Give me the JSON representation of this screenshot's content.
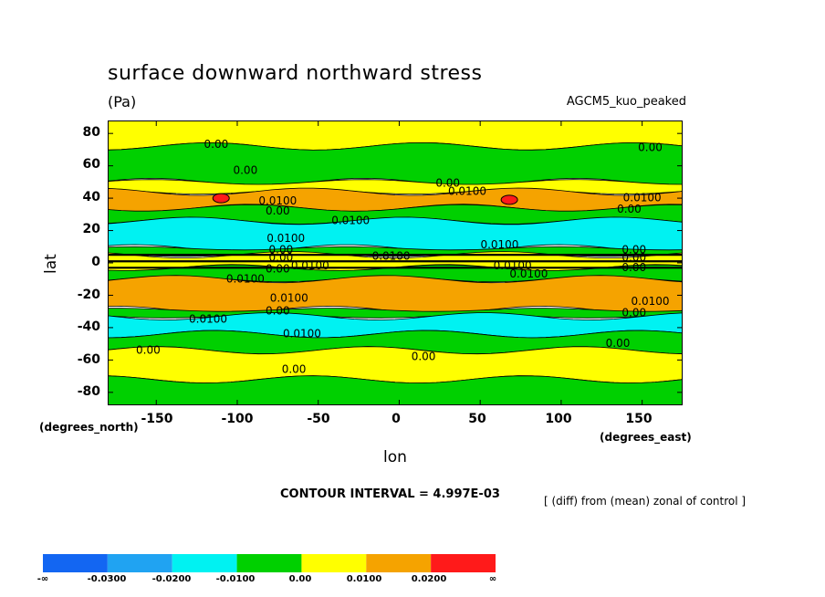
{
  "chart_data": {
    "type": "heatmap",
    "title": "surface downward northward stress",
    "units": "(Pa)",
    "model_label": "AGCM5_kuo_peaked",
    "xlabel": "lon",
    "ylabel": "lat",
    "x_unit_label": "(degrees_east)",
    "y_unit_label": "(degrees_north)",
    "x_ticks": [
      "-150",
      "-100",
      "-50",
      "0",
      "50",
      "100",
      "150"
    ],
    "y_ticks": [
      "80",
      "60",
      "40",
      "20",
      "0",
      "-20",
      "-40",
      "-60",
      "-80"
    ],
    "xlim": [
      -180,
      175
    ],
    "ylim": [
      -88,
      88
    ],
    "contour_interval": "CONTOUR INTERVAL = 4.997E-03",
    "note": "[ (diff) from (mean) zonal of control ]",
    "colorbar": {
      "labels": [
        "-∞",
        "-0.0300",
        "-0.0200",
        "-0.0100",
        "0.00",
        "0.0100",
        "0.0200",
        "∞"
      ],
      "colors": [
        "#1366f2",
        "#20a3f2",
        "#00f2f2",
        "#00d000",
        "#ffff00",
        "#f5a300",
        "#ff1a1a"
      ]
    },
    "bands": [
      {
        "lat_max": 88,
        "lat_min": 72,
        "level": "0.00 to 0.0100",
        "color": "#ffff00"
      },
      {
        "lat_max": 72,
        "lat_min": 50,
        "level": "-0.0100 to 0.00",
        "color": "#00d000"
      },
      {
        "lat_max": 50,
        "lat_min": 44,
        "level": "0.00 to 0.0100",
        "color": "#ffff00"
      },
      {
        "lat_max": 44,
        "lat_min": 34,
        "level": "0.0100 to 0.0200",
        "color": "#f5a300"
      },
      {
        "lat_max": 34,
        "lat_min": 26,
        "level": "-0.0100 to 0.00",
        "color": "#00d000"
      },
      {
        "lat_max": 26,
        "lat_min": 9,
        "level": "-0.0200 to -0.0100",
        "color": "#00f2f2"
      },
      {
        "lat_max": 9,
        "lat_min": 5,
        "level": "-0.0100 to 0.00",
        "color": "#00d000"
      },
      {
        "lat_max": 5,
        "lat_min": -3,
        "level": "0.00 to 0.0100",
        "color": "#ffff00"
      },
      {
        "lat_max": -3,
        "lat_min": -10,
        "level": "-0.0100 to 0.00",
        "color": "#00d000"
      },
      {
        "lat_max": -10,
        "lat_min": -29,
        "level": "0.0100 to 0.0200",
        "color": "#f5a300"
      },
      {
        "lat_max": -29,
        "lat_min": -33,
        "level": "-0.0100 to 0.00",
        "color": "#00d000"
      },
      {
        "lat_max": -33,
        "lat_min": -44,
        "level": "-0.0200 to -0.0100",
        "color": "#00f2f2"
      },
      {
        "lat_max": -44,
        "lat_min": -54,
        "level": "-0.0100 to 0.00",
        "color": "#00d000"
      },
      {
        "lat_max": -54,
        "lat_min": -72,
        "level": "0.00 to 0.0100",
        "color": "#ffff00"
      },
      {
        "lat_max": -72,
        "lat_min": -88,
        "level": "-0.0100 to 0.00",
        "color": "#00d000"
      }
    ],
    "hotspots": [
      {
        "lon": -110,
        "lat": 40,
        "level": "> 0.0200",
        "color": "#ff1a1a"
      },
      {
        "lon": 68,
        "lat": 39,
        "level": "> 0.0200",
        "color": "#ff1a1a"
      }
    ],
    "contour_labels": [
      {
        "text": "0.00",
        "lon": -113,
        "lat": 71
      },
      {
        "text": "0.00",
        "lon": -95,
        "lat": 55
      },
      {
        "text": "0.0100",
        "lon": -75,
        "lat": 36
      },
      {
        "text": "0.00",
        "lon": -75,
        "lat": 30
      },
      {
        "text": "0.0100",
        "lon": -30,
        "lat": 24
      },
      {
        "text": "0.00",
        "lon": 30,
        "lat": 47
      },
      {
        "text": "0.0100",
        "lon": 42,
        "lat": 42
      },
      {
        "text": "0.0100",
        "lon": 62,
        "lat": 9
      },
      {
        "text": "0.00",
        "lon": 155,
        "lat": 69
      },
      {
        "text": "0.0100",
        "lon": 150,
        "lat": 38
      },
      {
        "text": "0.00",
        "lon": 142,
        "lat": 31
      },
      {
        "text": "0.0100",
        "lon": -70,
        "lat": 13
      },
      {
        "text": "0.00",
        "lon": -73,
        "lat": 6
      },
      {
        "text": "0.00",
        "lon": -73,
        "lat": 1
      },
      {
        "text": "0.0100",
        "lon": -5,
        "lat": 2
      },
      {
        "text": "0.0100",
        "lon": -55,
        "lat": -4
      },
      {
        "text": "0.00",
        "lon": -75,
        "lat": -6
      },
      {
        "text": "0.0100",
        "lon": -95,
        "lat": -12
      },
      {
        "text": "0.0100",
        "lon": 70,
        "lat": -4
      },
      {
        "text": "0.0100",
        "lon": 80,
        "lat": -9
      },
      {
        "text": "0.00",
        "lon": 145,
        "lat": 6
      },
      {
        "text": "0.00",
        "lon": 145,
        "lat": 1
      },
      {
        "text": "0.00",
        "lon": 145,
        "lat": -5
      },
      {
        "text": "0.0100",
        "lon": -68,
        "lat": -24
      },
      {
        "text": "0.00",
        "lon": -75,
        "lat": -32
      },
      {
        "text": "0.0100",
        "lon": 155,
        "lat": -26
      },
      {
        "text": "0.00",
        "lon": 145,
        "lat": -33
      },
      {
        "text": "0.0100",
        "lon": -118,
        "lat": -37
      },
      {
        "text": "0.0100",
        "lon": -60,
        "lat": -46
      },
      {
        "text": "0.00",
        "lon": -155,
        "lat": -56
      },
      {
        "text": "0.00",
        "lon": 135,
        "lat": -52
      },
      {
        "text": "0.00",
        "lon": -65,
        "lat": -68
      },
      {
        "text": "0.00",
        "lon": 15,
        "lat": -60
      }
    ]
  }
}
